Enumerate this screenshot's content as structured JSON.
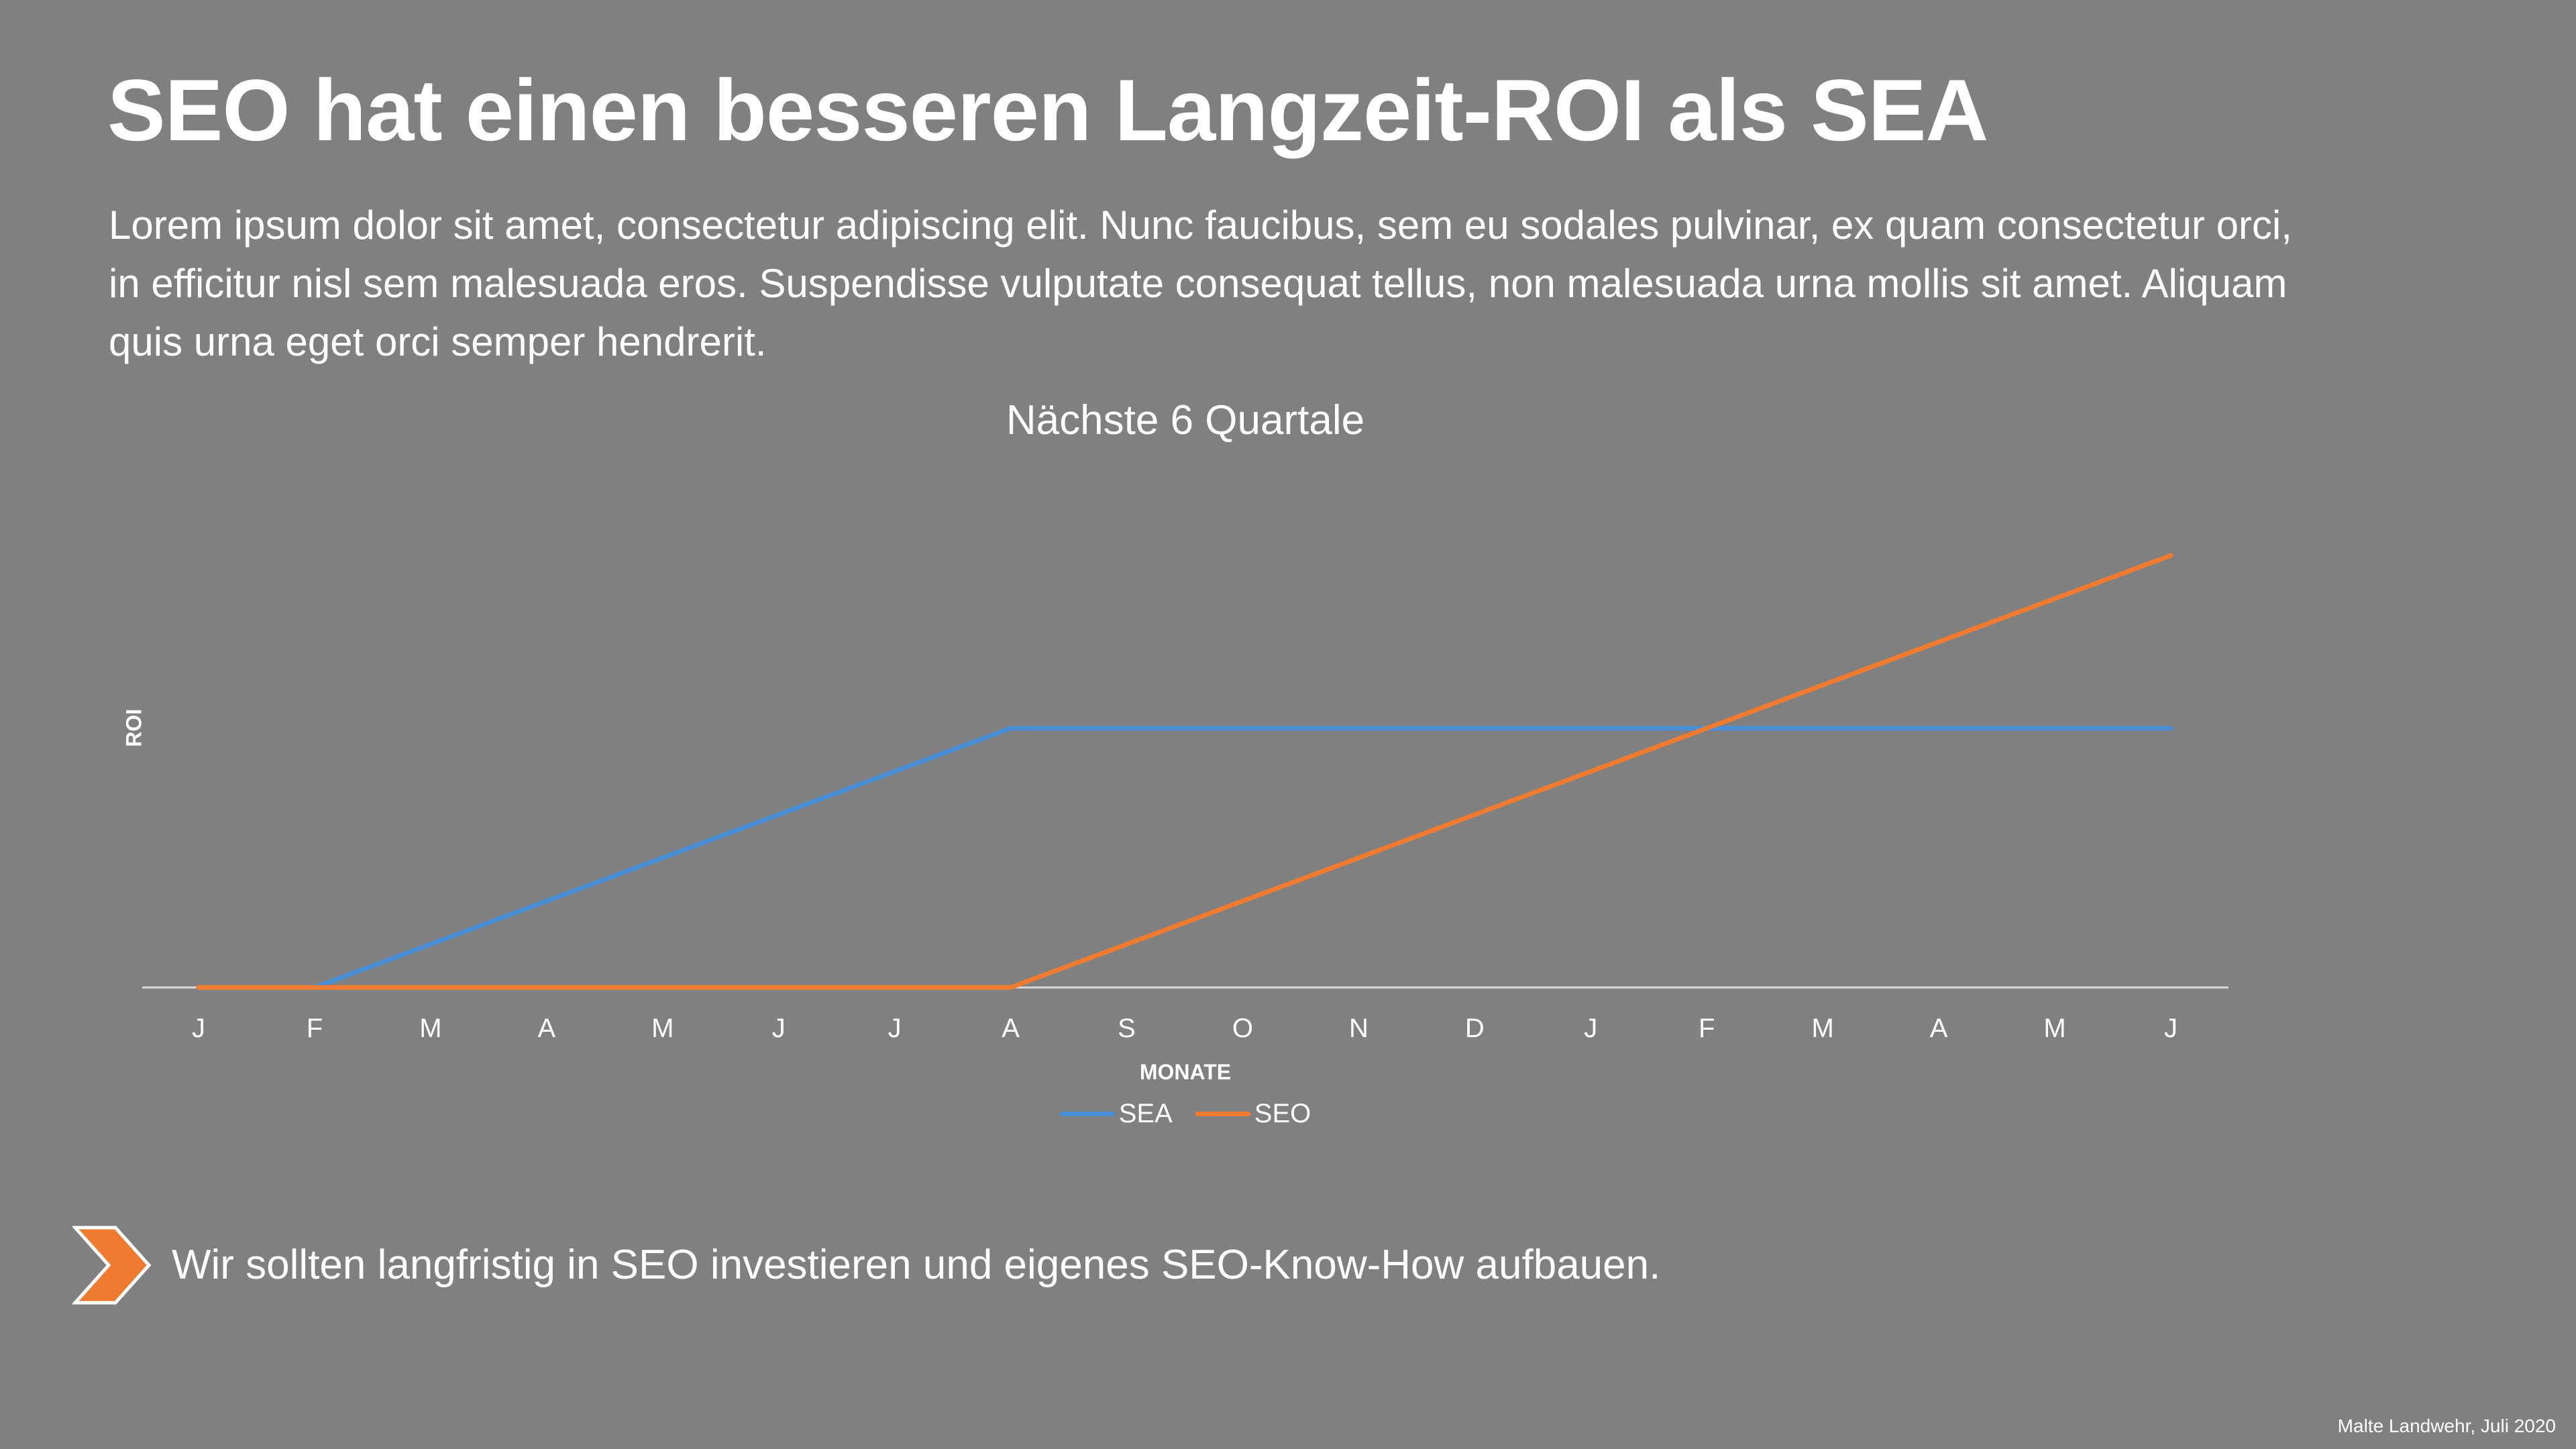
{
  "slide": {
    "title": "SEO hat einen besseren Langzeit-ROI als SEA",
    "body": "Lorem ipsum dolor sit amet, consectetur adipiscing elit. Nunc faucibus, sem eu sodales pulvinar, ex quam consectetur orci, in efficitur nisl sem malesuada eros. Suspendisse vulputate consequat tellus, non malesuada urna mollis sit amet. Aliquam quis urna eget orci semper hendrerit.",
    "takeaway": "Wir sollten langfristig in SEO investieren und eigenes SEO-Know-How aufbauen.",
    "takeaway_icon": "chevron-arrow-icon",
    "footer": "Malte Landwehr, Juli 2020"
  },
  "colors": {
    "background": "#808080",
    "text": "#ffffff",
    "sea": "#4A8FD6",
    "seo": "#EE7B2F",
    "axis": "#D9D9D9"
  },
  "chart_data": {
    "type": "line",
    "title": "Nächste 6 Quartale",
    "xlabel": "MONATE",
    "ylabel": "ROI",
    "categories": [
      "J",
      "F",
      "M",
      "A",
      "M",
      "J",
      "J",
      "A",
      "S",
      "O",
      "N",
      "D",
      "J",
      "F",
      "M",
      "A",
      "M",
      "J"
    ],
    "series": [
      {
        "name": "SEA",
        "color": "#4A8FD6",
        "values": [
          0,
          0,
          1,
          2,
          3,
          4,
          5,
          6,
          6,
          6,
          6,
          6,
          6,
          6,
          6,
          6,
          6,
          6
        ]
      },
      {
        "name": "SEO",
        "color": "#EE7B2F",
        "values": [
          0,
          0,
          0,
          0,
          0,
          0,
          0,
          0,
          1,
          2,
          3,
          4,
          5,
          6,
          7,
          8,
          9,
          10
        ]
      }
    ],
    "ylim": [
      0,
      10
    ],
    "y_ticks_shown": false,
    "grid": false,
    "legend": "bottom"
  }
}
